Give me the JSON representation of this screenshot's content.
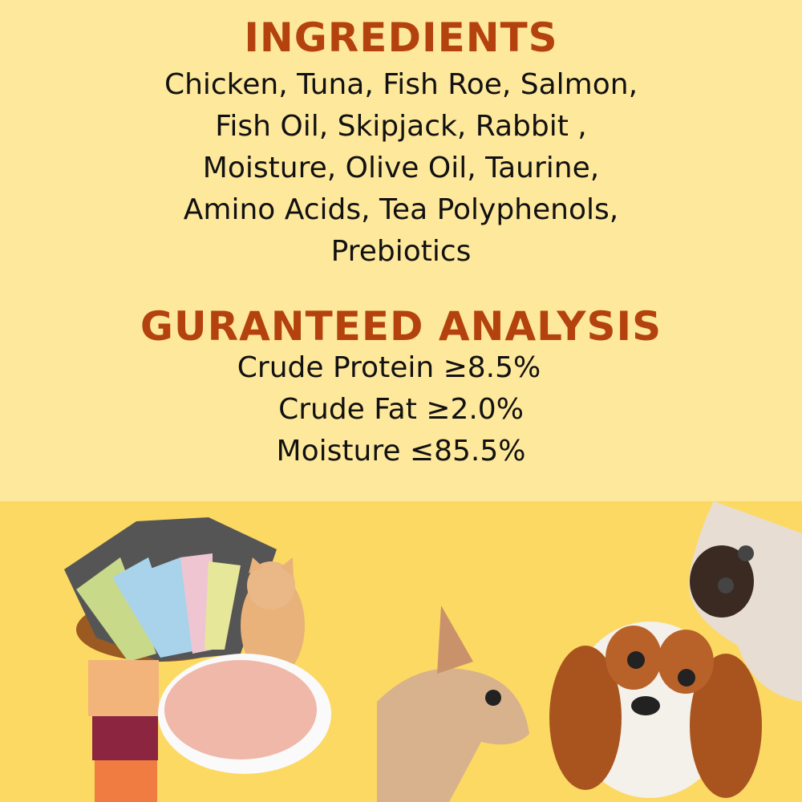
{
  "ingredients": {
    "title": "INGREDIENTS",
    "lines": [
      "Chicken, Tuna, Fish Roe, Salmon,",
      "Fish Oil, Skipjack, Rabbit ,",
      "Moisture, Olive Oil, Taurine,",
      "Amino Acids, Tea Polyphenols,",
      "Prebiotics"
    ]
  },
  "analysis": {
    "title": "GURANTEED ANALYSIS",
    "lines": [
      "Crude Protein ≥8.5%",
      "Crude Fat ≥2.0%",
      "Moisture ≤85.5%"
    ]
  },
  "colors": {
    "top_background": "#fee89b",
    "bottom_background": "#fcd963",
    "heading": "#b4420f",
    "text": "#111111"
  }
}
